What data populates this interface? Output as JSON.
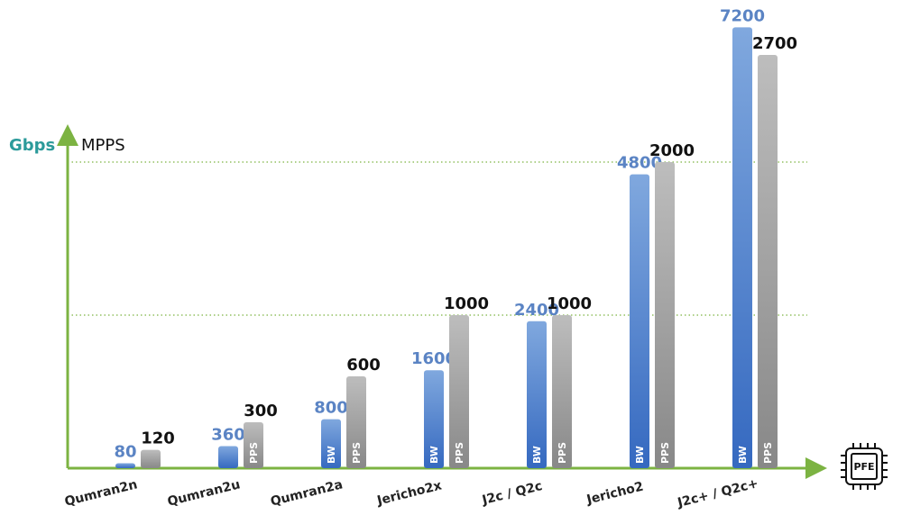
{
  "chart_data": {
    "type": "bar",
    "categories": [
      "Qumran2n",
      "Qumran2u",
      "Qumran2a",
      "Jericho2x",
      "J2c / Q2c",
      "Jericho2",
      "J2c+ / Q2c+"
    ],
    "series": [
      {
        "name": "Gbps",
        "color": "#3f73c6",
        "axis": "y",
        "values": [
          80,
          360,
          800,
          1600,
          2400,
          4800,
          7200
        ],
        "bar_text": [
          null,
          null,
          "BW",
          "BW",
          "BW",
          "BW",
          "BW"
        ]
      },
      {
        "name": "MPPS",
        "color": "#8f8f8f",
        "axis": "y2",
        "values": [
          120,
          300,
          600,
          1000,
          1000,
          2000,
          2700
        ],
        "bar_text": [
          null,
          "PPS",
          "PPS",
          "PPS",
          "PPS",
          "PPS",
          "PPS"
        ]
      }
    ],
    "ylim": [
      0,
      7500
    ],
    "y2lim": [
      0,
      3000
    ],
    "y2grid": [
      1000,
      2000
    ],
    "grid": true,
    "axis_color": "#7cb342",
    "icon_label": "PFE"
  }
}
